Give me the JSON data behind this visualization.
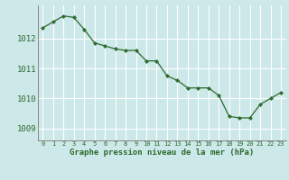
{
  "x": [
    0,
    1,
    2,
    3,
    4,
    5,
    6,
    7,
    8,
    9,
    10,
    11,
    12,
    13,
    14,
    15,
    16,
    17,
    18,
    19,
    20,
    21,
    22,
    23
  ],
  "y": [
    1012.35,
    1012.55,
    1012.75,
    1012.7,
    1012.3,
    1011.85,
    1011.75,
    1011.65,
    1011.6,
    1011.6,
    1011.25,
    1011.25,
    1010.75,
    1010.6,
    1010.35,
    1010.35,
    1010.35,
    1010.1,
    1009.4,
    1009.35,
    1009.35,
    1009.8,
    1010.0,
    1010.2
  ],
  "line_color": "#2d6a2d",
  "marker": "D",
  "marker_size": 2.2,
  "bg_color": "#cce8e8",
  "grid_color": "#ffffff",
  "axis_color": "#888888",
  "xlabel": "Graphe pression niveau de la mer (hPa)",
  "xlabel_color": "#2d6a2d",
  "tick_label_color": "#2d6a2d",
  "ylim": [
    1008.6,
    1013.1
  ],
  "yticks": [
    1009,
    1010,
    1011,
    1012
  ],
  "xlim": [
    -0.5,
    23.5
  ],
  "xticks": [
    0,
    1,
    2,
    3,
    4,
    5,
    6,
    7,
    8,
    9,
    10,
    11,
    12,
    13,
    14,
    15,
    16,
    17,
    18,
    19,
    20,
    21,
    22,
    23
  ]
}
